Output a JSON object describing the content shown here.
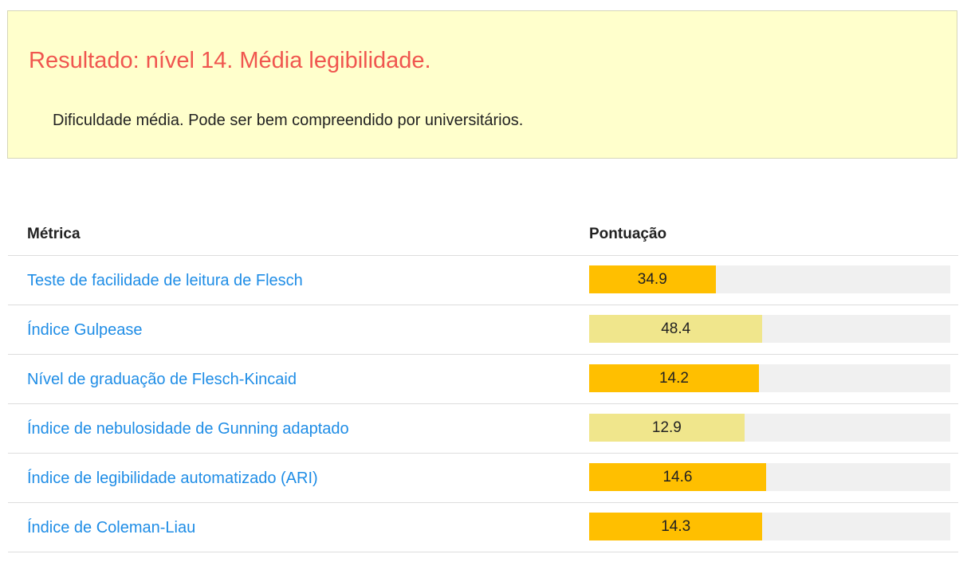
{
  "result": {
    "title": "Resultado: nível 14. Média legibilidade.",
    "description": "Dificuldade média. Pode ser bem compreendido por universitários.",
    "title_color": "#f0564f",
    "background_color": "#ffffcc"
  },
  "table": {
    "headers": {
      "metric": "Métrica",
      "score": "Pontuação"
    },
    "link_color": "#1f8de6",
    "track_color": "#f0f0f0",
    "rows": [
      {
        "metric": "Teste de facilidade de leitura de Flesch",
        "score": "34.9",
        "fill_fraction": 0.35,
        "bar_color": "#ffbf00"
      },
      {
        "metric": "Índice Gulpease",
        "score": "48.4",
        "fill_fraction": 0.48,
        "bar_color": "#f0e68c"
      },
      {
        "metric": "Nível de graduação de Flesch-Kincaid",
        "score": "14.2",
        "fill_fraction": 0.47,
        "bar_color": "#ffbf00"
      },
      {
        "metric": "Índice de nebulosidade de Gunning adaptado",
        "score": "12.9",
        "fill_fraction": 0.43,
        "bar_color": "#f0e68c"
      },
      {
        "metric": "Índice de legibilidade automatizado (ARI)",
        "score": "14.6",
        "fill_fraction": 0.49,
        "bar_color": "#ffbf00"
      },
      {
        "metric": "Índice de Coleman-Liau",
        "score": "14.3",
        "fill_fraction": 0.48,
        "bar_color": "#ffbf00"
      }
    ]
  }
}
